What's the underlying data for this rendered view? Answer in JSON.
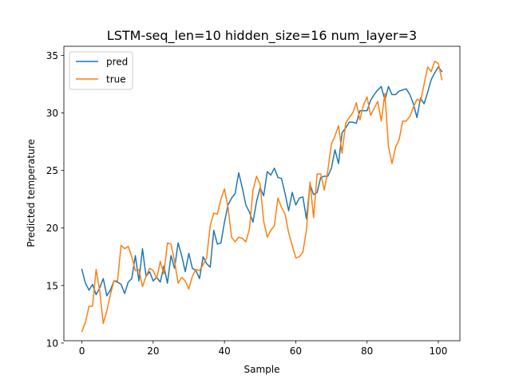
{
  "chart_data": {
    "type": "line",
    "title": "LSTM-seq_len=10 hidden_size=16 num_layer=3",
    "xlabel": "Sample",
    "ylabel": "Predicted temperature",
    "xlim": [
      -5.05,
      106.05
    ],
    "ylim": [
      10.2,
      35.8
    ],
    "xticks": [
      0,
      20,
      40,
      60,
      80,
      100
    ],
    "yticks": [
      10,
      15,
      20,
      25,
      30,
      35
    ],
    "grid": false,
    "legend_position": "upper left",
    "series": [
      {
        "name": "pred",
        "color": "#1f77b4",
        "x": [
          0,
          1,
          2,
          3,
          4,
          5,
          6,
          7,
          8,
          9,
          10,
          11,
          12,
          13,
          14,
          15,
          16,
          17,
          18,
          19,
          20,
          21,
          22,
          23,
          24,
          25,
          26,
          27,
          28,
          29,
          30,
          31,
          32,
          33,
          34,
          35,
          36,
          37,
          38,
          39,
          40,
          41,
          42,
          43,
          44,
          45,
          46,
          47,
          48,
          49,
          50,
          51,
          52,
          53,
          54,
          55,
          56,
          57,
          58,
          59,
          60,
          61,
          62,
          63,
          64,
          65,
          66,
          67,
          68,
          69,
          70,
          71,
          72,
          73,
          74,
          75,
          76,
          77,
          78,
          79,
          80,
          81,
          82,
          83,
          84,
          85,
          86,
          87,
          88,
          89,
          90,
          91,
          92,
          93,
          94,
          95,
          96,
          97,
          98,
          99,
          100,
          101
        ],
        "values": [
          16.4,
          15.2,
          14.6,
          15.1,
          14.2,
          14.8,
          15.6,
          14.1,
          14.6,
          15.4,
          15.3,
          15.1,
          14.3,
          15.3,
          15.6,
          17.6,
          15.4,
          18.2,
          15.8,
          16.2,
          15.4,
          15.7,
          15.3,
          16.7,
          15.2,
          17.6,
          16.5,
          18.7,
          17.6,
          16.2,
          17.8,
          16.5,
          16.3,
          15.6,
          17.5,
          16.9,
          16.6,
          19.8,
          18.6,
          18.7,
          20.5,
          22.0,
          22.6,
          23.0,
          24.8,
          23.5,
          22.0,
          21.4,
          20.5,
          22.3,
          23.5,
          22.8,
          24.9,
          24.6,
          25.2,
          24.4,
          24.3,
          23.0,
          21.5,
          23.1,
          22.0,
          22.6,
          22.7,
          20.8,
          23.8,
          22.9,
          23.1,
          24.4,
          24.5,
          24.5,
          25.2,
          26.8,
          25.6,
          28.3,
          28.7,
          29.2,
          29.2,
          29.1,
          30.2,
          30.2,
          30.2,
          31.1,
          31.6,
          32.0,
          32.3,
          31.1,
          32.3,
          31.6,
          31.6,
          31.9,
          32.0,
          32.1,
          31.6,
          30.8,
          29.6,
          31.3,
          30.8,
          31.8,
          32.9,
          33.5,
          34.0,
          33.6
        ]
      },
      {
        "name": "true",
        "color": "#ff7f0e",
        "x": [
          0,
          1,
          2,
          3,
          4,
          5,
          6,
          7,
          8,
          9,
          10,
          11,
          12,
          13,
          14,
          15,
          16,
          17,
          18,
          19,
          20,
          21,
          22,
          23,
          24,
          25,
          26,
          27,
          28,
          29,
          30,
          31,
          32,
          33,
          34,
          35,
          36,
          37,
          38,
          39,
          40,
          41,
          42,
          43,
          44,
          45,
          46,
          47,
          48,
          49,
          50,
          51,
          52,
          53,
          54,
          55,
          56,
          57,
          58,
          59,
          60,
          61,
          62,
          63,
          64,
          65,
          66,
          67,
          68,
          69,
          70,
          71,
          72,
          73,
          74,
          75,
          76,
          77,
          78,
          79,
          80,
          81,
          82,
          83,
          84,
          85,
          86,
          87,
          88,
          89,
          90,
          91,
          92,
          93,
          94,
          95,
          96,
          97,
          98,
          99,
          100,
          101
        ],
        "values": [
          11.0,
          11.8,
          13.2,
          13.2,
          16.4,
          14.5,
          11.7,
          12.8,
          14.2,
          15.4,
          15.4,
          18.5,
          18.2,
          18.4,
          17.5,
          16.3,
          16.4,
          14.9,
          15.8,
          16.5,
          16.3,
          15.6,
          17.1,
          16.0,
          18.7,
          18.6,
          17.1,
          15.2,
          15.7,
          15.4,
          14.7,
          15.8,
          16.4,
          16.3,
          16.8,
          17.4,
          20.2,
          21.3,
          21.2,
          22.5,
          23.4,
          21.8,
          19.2,
          18.8,
          19.2,
          19.1,
          18.8,
          19.9,
          23.3,
          24.5,
          23.8,
          20.6,
          19.2,
          19.8,
          20.2,
          22.6,
          21.8,
          21.2,
          19.6,
          18.5,
          17.4,
          17.5,
          17.9,
          19.8,
          24.0,
          20.9,
          24.7,
          24.7,
          23.3,
          25.0,
          27.3,
          28.0,
          28.9,
          26.5,
          29.1,
          29.6,
          30.0,
          30.9,
          29.4,
          30.7,
          31.4,
          29.8,
          30.4,
          31.0,
          29.3,
          31.7,
          27.1,
          25.6,
          27.0,
          27.7,
          29.3,
          29.3,
          29.7,
          30.5,
          31.2,
          31.0,
          32.5,
          34.0,
          33.6,
          34.5,
          34.3,
          32.9
        ]
      }
    ]
  }
}
